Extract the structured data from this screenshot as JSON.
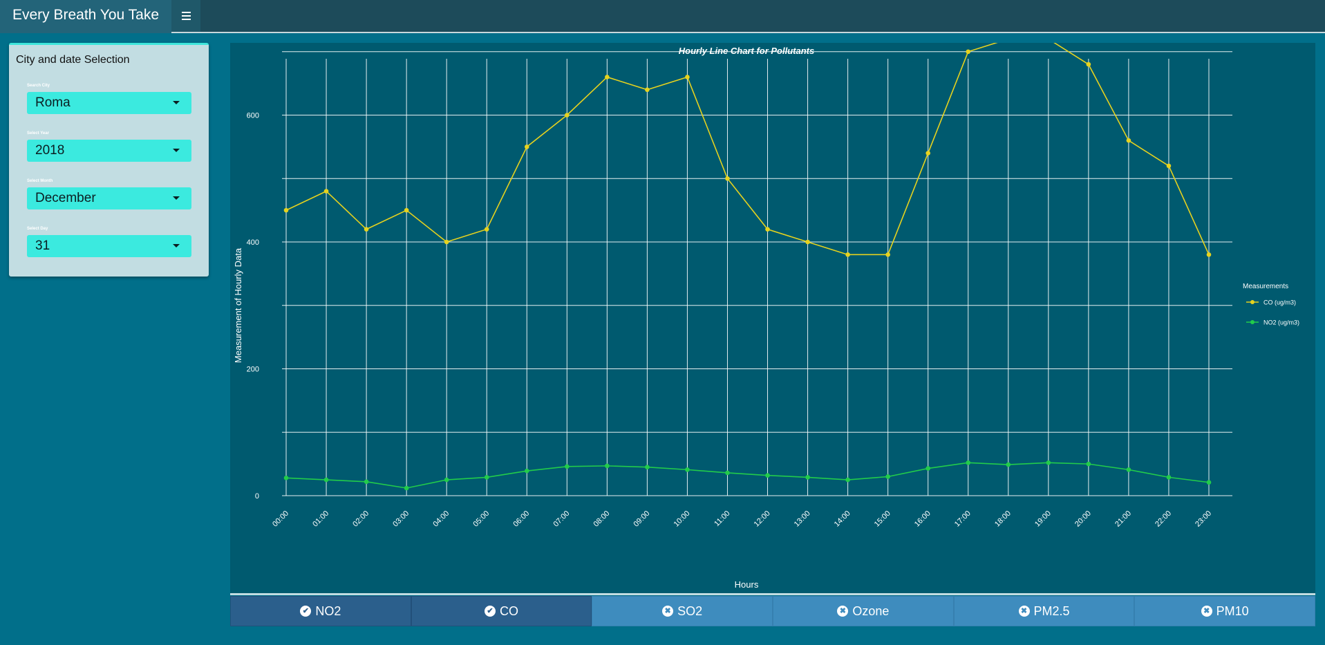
{
  "header": {
    "title": "Every Breath You Take",
    "menu_icon": "hamburger-icon"
  },
  "sidebar": {
    "box_title": "City and date Selection",
    "fields": [
      {
        "label": "Search City",
        "value": "Roma"
      },
      {
        "label": "Select Year",
        "value": "2018"
      },
      {
        "label": "Select Month",
        "value": "December"
      },
      {
        "label": "Select Day",
        "value": "31"
      }
    ]
  },
  "chart_data": {
    "type": "line",
    "title": "Hourly Line Chart for Pollutants",
    "xlabel": "Hours",
    "ylabel": "Measurement of Hourly Data",
    "categories": [
      "00:00",
      "01:00",
      "02:00",
      "03:00",
      "04:00",
      "05:00",
      "06:00",
      "07:00",
      "08:00",
      "09:00",
      "10:00",
      "11:00",
      "12:00",
      "13:00",
      "14:00",
      "15:00",
      "16:00",
      "17:00",
      "18:00",
      "19:00",
      "20:00",
      "21:00",
      "22:00",
      "23:00"
    ],
    "y_ticks": [
      0,
      200,
      400,
      600
    ],
    "ylim": [
      0,
      760
    ],
    "grid": true,
    "legend_title": "Measurements",
    "legend_position": "right",
    "series": [
      {
        "name": "CO (ug/m3)",
        "color": "#e6d21e",
        "values": [
          450,
          480,
          420,
          450,
          400,
          420,
          550,
          600,
          660,
          640,
          660,
          500,
          420,
          400,
          380,
          380,
          540,
          700,
          720,
          720,
          680,
          560,
          520,
          380
        ]
      },
      {
        "name": "NO2 (ug/m3)",
        "color": "#22cc4a",
        "values": [
          28,
          25,
          22,
          12,
          25,
          29,
          39,
          46,
          47,
          45,
          41,
          36,
          32,
          29,
          25,
          30,
          43,
          52,
          49,
          52,
          50,
          41,
          29,
          21
        ]
      }
    ]
  },
  "tabs": [
    {
      "label": "NO2",
      "state": "on",
      "icon": "check-circle-icon"
    },
    {
      "label": "CO",
      "state": "on",
      "icon": "check-circle-icon"
    },
    {
      "label": "SO2",
      "state": "off",
      "icon": "x-circle-icon"
    },
    {
      "label": "Ozone",
      "state": "off",
      "icon": "x-circle-icon"
    },
    {
      "label": "PM2.5",
      "state": "off",
      "icon": "x-circle-icon"
    },
    {
      "label": "PM10",
      "state": "off",
      "icon": "x-circle-icon"
    }
  ]
}
